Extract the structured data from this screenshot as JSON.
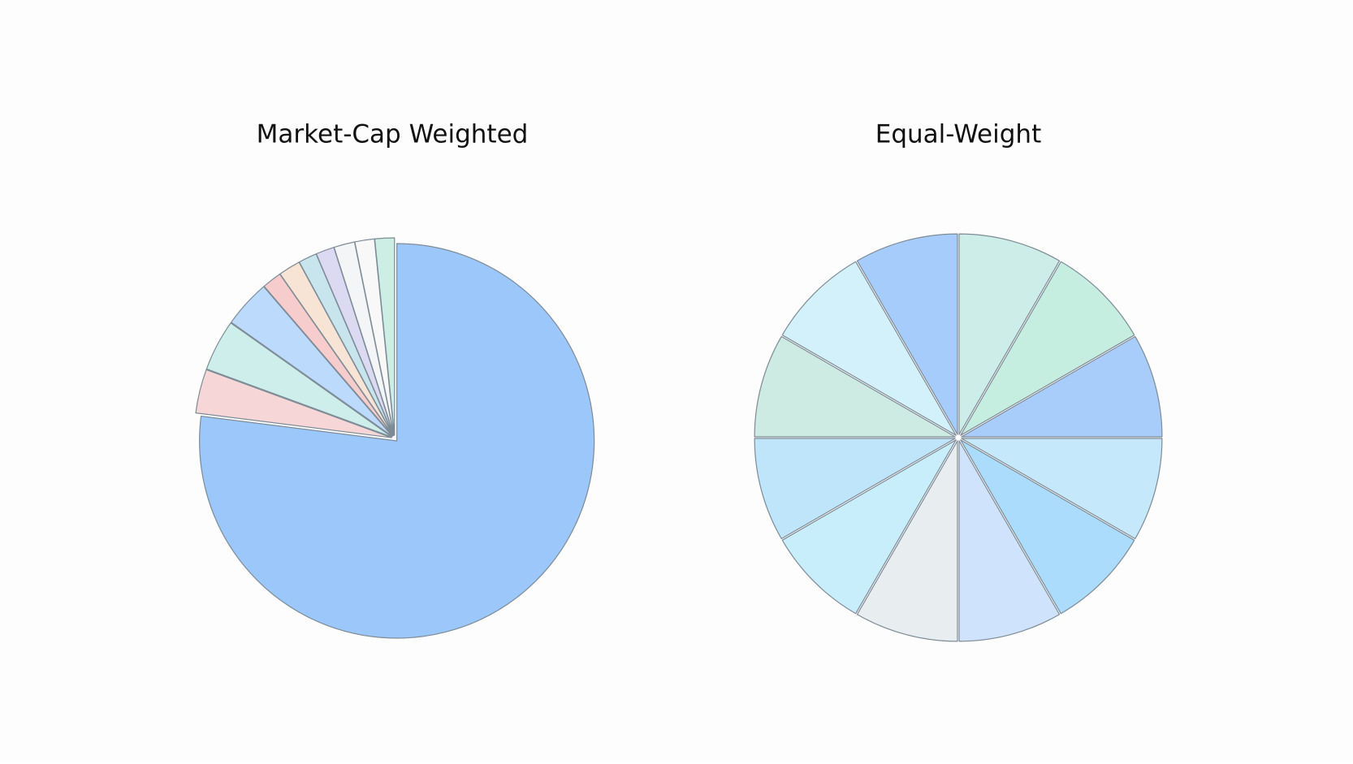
{
  "chart_data": [
    {
      "type": "pie",
      "title": "Market-Cap Weighted",
      "values": [
        77,
        3.6,
        4.2,
        3.9,
        1.6,
        1.8,
        1.5,
        1.5,
        1.7,
        1.6,
        1.6
      ],
      "colors": [
        "#9cc7fa",
        "#f6d6d6",
        "#cdeeea",
        "#bcdafc",
        "#f6cccc",
        "#f8e4d4",
        "#c8e4ec",
        "#dcdaf2",
        "#f3f5f6",
        "#f8f8f8",
        "#cdeee4"
      ]
    },
    {
      "type": "pie",
      "title": "Equal-Weight",
      "values": [
        8.33,
        8.33,
        8.33,
        8.33,
        8.33,
        8.33,
        8.33,
        8.33,
        8.33,
        8.33,
        8.33,
        8.33
      ],
      "colors": [
        "#cdeee8",
        "#c5ede0",
        "#a9cdfb",
        "#c6e8fb",
        "#acdcfb",
        "#cfe4fc",
        "#e8eef0",
        "#c9eefb",
        "#bfe5fb",
        "#cdebe3",
        "#d3f1fb",
        "#a6ccfb"
      ]
    }
  ]
}
